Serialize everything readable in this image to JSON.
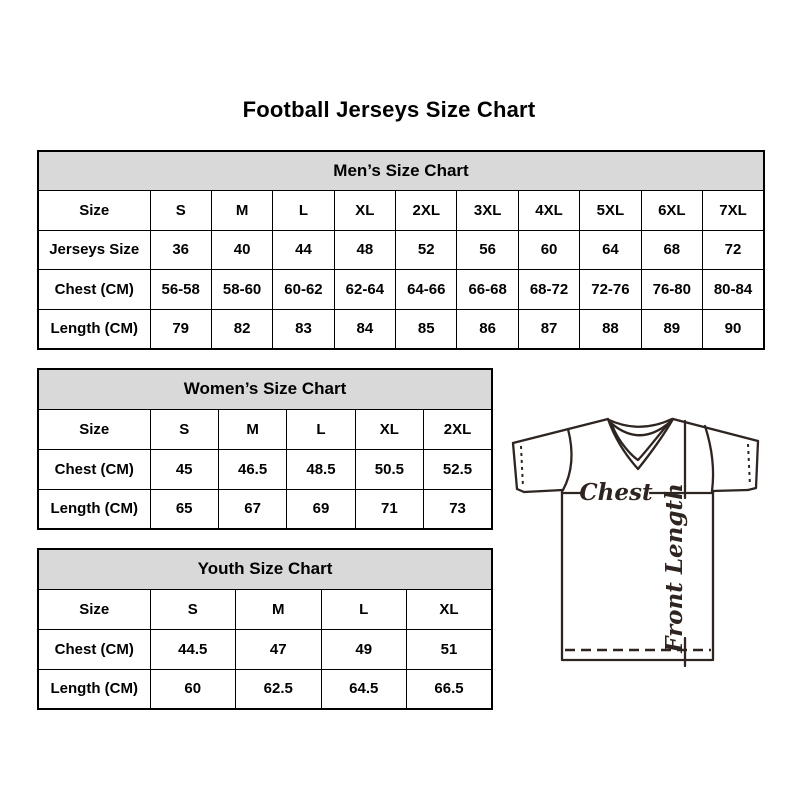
{
  "page": {
    "title": "Football Jerseys Size Chart"
  },
  "tables": {
    "men": {
      "title": "Men’s Size Chart",
      "rows": [
        {
          "label": "Size",
          "values": [
            "S",
            "M",
            "L",
            "XL",
            "2XL",
            "3XL",
            "4XL",
            "5XL",
            "6XL",
            "7XL"
          ]
        },
        {
          "label": "Jerseys Size",
          "values": [
            "36",
            "40",
            "44",
            "48",
            "52",
            "56",
            "60",
            "64",
            "68",
            "72"
          ]
        },
        {
          "label": "Chest (CM)",
          "values": [
            "56-58",
            "58-60",
            "60-62",
            "62-64",
            "64-66",
            "66-68",
            "68-72",
            "72-76",
            "76-80",
            "80-84"
          ]
        },
        {
          "label": "Length (CM)",
          "values": [
            "79",
            "82",
            "83",
            "84",
            "85",
            "86",
            "87",
            "88",
            "89",
            "90"
          ]
        }
      ]
    },
    "women": {
      "title": "Women’s Size Chart",
      "rows": [
        {
          "label": "Size",
          "values": [
            "S",
            "M",
            "L",
            "XL",
            "2XL"
          ]
        },
        {
          "label": "Chest (CM)",
          "values": [
            "45",
            "46.5",
            "48.5",
            "50.5",
            "52.5"
          ]
        },
        {
          "label": "Length (CM)",
          "values": [
            "65",
            "67",
            "69",
            "71",
            "73"
          ]
        }
      ]
    },
    "youth": {
      "title": "Youth Size Chart",
      "rows": [
        {
          "label": "Size",
          "values": [
            "S",
            "M",
            "L",
            "XL"
          ]
        },
        {
          "label": "Chest (CM)",
          "values": [
            "44.5",
            "47",
            "49",
            "51"
          ]
        },
        {
          "label": "Length (CM)",
          "values": [
            "60",
            "62.5",
            "64.5",
            "66.5"
          ]
        }
      ]
    }
  },
  "diagram": {
    "chest_label": "Chest",
    "front_length_label": "Front Length"
  },
  "colors": {
    "header_bg": "#d9d9d9",
    "border": "#000000",
    "diagram_line": "#2e2420"
  }
}
